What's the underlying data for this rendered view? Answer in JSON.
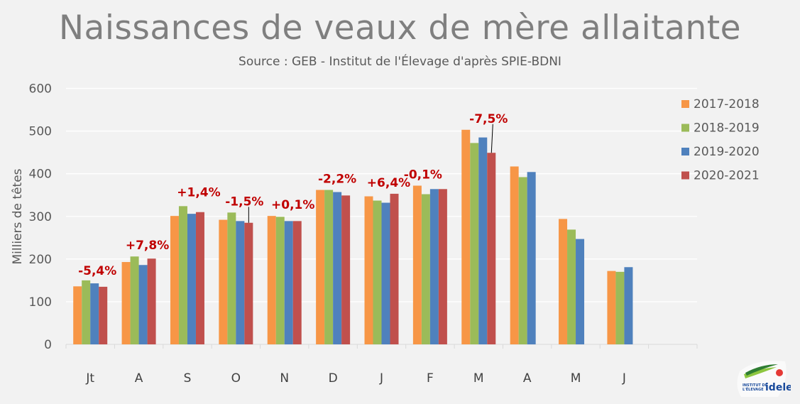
{
  "chart_data": {
    "type": "bar",
    "title": "Naissances de veaux de mère allaitante",
    "subtitle": "Source : GEB - Institut de l'Élevage d'après SPIE-BDNI",
    "xlabel": "",
    "ylabel": "Milliers de têtes",
    "ylim": [
      0,
      600
    ],
    "yticks": [
      0,
      100,
      200,
      300,
      400,
      500,
      600
    ],
    "grid": true,
    "legend_position": "right",
    "categories": [
      "Jt",
      "A",
      "S",
      "O",
      "N",
      "D",
      "J",
      "F",
      "M",
      "A",
      "M",
      "J"
    ],
    "series": [
      {
        "name": "2017-2018",
        "color": "#f79646",
        "values": [
          136,
          193,
          301,
          292,
          301,
          362,
          347,
          372,
          503,
          417,
          294,
          172
        ]
      },
      {
        "name": "2018-2019",
        "color": "#9bbb59",
        "values": [
          150,
          206,
          324,
          309,
          299,
          362,
          337,
          352,
          472,
          392,
          269,
          170
        ]
      },
      {
        "name": "2019-2020",
        "color": "#4f81bd",
        "values": [
          143,
          186,
          306,
          289,
          289,
          357,
          332,
          364,
          485,
          404,
          247,
          181
        ]
      },
      {
        "name": "2020-2021",
        "color": "#c0504d",
        "values": [
          135,
          201,
          310,
          285,
          289,
          349,
          353,
          364,
          449,
          null,
          null,
          null
        ]
      }
    ],
    "annotations": [
      "-5,4%",
      "+7,8%",
      "+1,4%",
      "-1,5%",
      "+0,1%",
      "-2,2%",
      "+6,4%",
      "-0,1%",
      "-7,5%",
      null,
      null,
      null
    ]
  },
  "logo": {
    "text": "INSTITUT DE L'ÉLEVAGE idele"
  }
}
